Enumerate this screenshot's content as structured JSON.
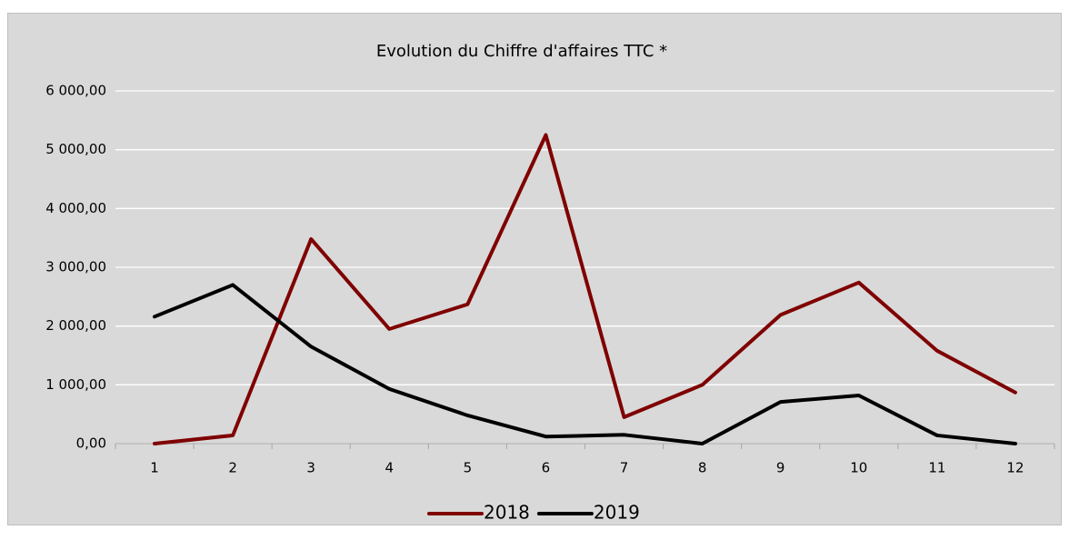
{
  "chart_data": {
    "type": "line",
    "title": "Evolution du Chiffre d'affaires TTC *",
    "categories": [
      "1",
      "2",
      "3",
      "4",
      "5",
      "6",
      "7",
      "8",
      "9",
      "10",
      "11",
      "12"
    ],
    "series": [
      {
        "name": "2018",
        "color": "#7f0000",
        "values": [
          0,
          140,
          3480,
          1950,
          2370,
          5250,
          450,
          1000,
          2190,
          2740,
          1580,
          870
        ]
      },
      {
        "name": "2019",
        "color": "#000000",
        "values": [
          2160,
          2700,
          1650,
          930,
          480,
          120,
          150,
          0,
          710,
          820,
          140,
          0
        ]
      }
    ],
    "ylim": [
      0,
      6000
    ],
    "yticks": [
      {
        "value": 0,
        "label": "0,00"
      },
      {
        "value": 1000,
        "label": "1 000,00"
      },
      {
        "value": 2000,
        "label": "2 000,00"
      },
      {
        "value": 3000,
        "label": "3 000,00"
      },
      {
        "value": 4000,
        "label": "4 000,00"
      },
      {
        "value": 5000,
        "label": "5 000,00"
      },
      {
        "value": 6000,
        "label": "6 000,00"
      }
    ],
    "grid": true,
    "legend": "bottom"
  }
}
